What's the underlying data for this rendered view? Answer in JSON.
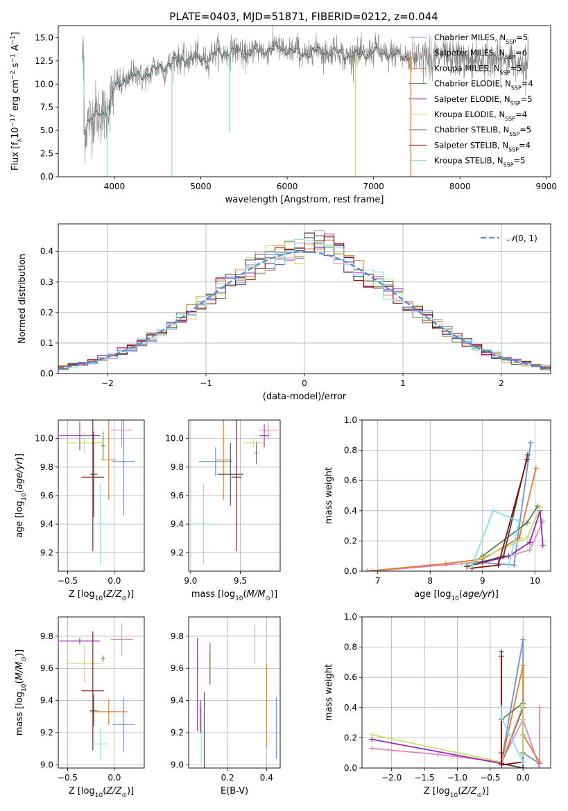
{
  "figure_title": "PLATE=0403, MJD=51871, FIBERID=0212, z=0.044",
  "colors": {
    "Chabrier MILES": "#6a8fdc",
    "Salpeter MILES": "#e987b9",
    "Kroupa MILES": "#e07b2b",
    "Chabrier ELODIE": "#4f7f45",
    "Salpeter ELODIE": "#9c27b0",
    "Kroupa ELODIE": "#c8e16c",
    "Chabrier STELIB": "#444444",
    "Salpeter STELIB": "#8b0a0a",
    "Kroupa STELIB": "#86dfe6",
    "data": "#808080",
    "gaussian": "#5b86d8"
  },
  "chart_data": [
    {
      "type": "line",
      "name": "spectrum",
      "xlabel": "wavelength [Angstrom, rest frame]",
      "ylabel": "Flux [f_λ 10^-17 erg cm^-2 s^-1 A^-1]",
      "xlim": [
        3350,
        9050
      ],
      "ylim": [
        0,
        16.3
      ],
      "xticks": [
        4000,
        5000,
        6000,
        7000,
        8000,
        9000
      ],
      "yticks": [
        0.0,
        2.5,
        5.0,
        7.5,
        10.0,
        12.5,
        15.0
      ],
      "legend_position": "top-right",
      "legend": [
        {
          "label": "Chabrier MILES, N_SSP=5",
          "name": "Chabrier MILES",
          "main": "Chabrier MILES, N",
          "sub": "SSP",
          "tail": "=5"
        },
        {
          "label": "Salpeter MILES, N_SSP=6",
          "name": "Salpeter MILES",
          "main": "Salpeter MILES, N",
          "sub": "SSP",
          "tail": "=6"
        },
        {
          "label": "Kroupa MILES, N_SSP=5",
          "name": "Kroupa MILES",
          "main": "Kroupa MILES, N",
          "sub": "SSP",
          "tail": "=5"
        },
        {
          "label": "Chabrier ELODIE, N_SSP=4",
          "name": "Chabrier ELODIE",
          "main": "Chabrier ELODIE, N",
          "sub": "SSP",
          "tail": "=4"
        },
        {
          "label": "Salpeter ELODIE, N_SSP=5",
          "name": "Salpeter ELODIE",
          "main": "Salpeter ELODIE, N",
          "sub": "SSP",
          "tail": "=5"
        },
        {
          "label": "Kroupa ELODIE, N_SSP=4",
          "name": "Kroupa ELODIE",
          "main": "Kroupa ELODIE, N",
          "sub": "SSP",
          "tail": "=4"
        },
        {
          "label": "Chabrier STELIB, N_SSP=5",
          "name": "Chabrier STELIB",
          "main": "Chabrier STELIB, N",
          "sub": "SSP",
          "tail": "=5"
        },
        {
          "label": "Salpeter STELIB, N_SSP=4",
          "name": "Salpeter STELIB",
          "main": "Salpeter STELIB, N",
          "sub": "SSP",
          "tail": "=4"
        },
        {
          "label": "Kroupa STELIB, N_SSP=5",
          "name": "Kroupa STELIB",
          "main": "Kroupa STELIB, N",
          "sub": "SSP",
          "tail": "=5"
        }
      ],
      "continuum": [
        [
          3650,
          5.0
        ],
        [
          3700,
          6.0
        ],
        [
          3800,
          6.8
        ],
        [
          3900,
          7.3
        ],
        [
          3950,
          8.0
        ],
        [
          4000,
          9.4
        ],
        [
          4100,
          10.2
        ],
        [
          4200,
          10.6
        ],
        [
          4300,
          10.9
        ],
        [
          4400,
          11.4
        ],
        [
          4500,
          11.8
        ],
        [
          4600,
          12.0
        ],
        [
          4700,
          12.2
        ],
        [
          4800,
          12.7
        ],
        [
          4900,
          12.8
        ],
        [
          5000,
          12.9
        ],
        [
          5200,
          13.2
        ],
        [
          5400,
          13.4
        ],
        [
          5600,
          13.6
        ],
        [
          5800,
          13.7
        ],
        [
          6000,
          13.7
        ],
        [
          6200,
          13.5
        ],
        [
          6400,
          13.4
        ],
        [
          6600,
          13.4
        ],
        [
          6800,
          13.2
        ],
        [
          7000,
          13.3
        ],
        [
          7200,
          13.3
        ],
        [
          7430,
          13.1
        ]
      ],
      "data_extent": [
        3630,
        8800
      ],
      "dropouts": [
        [
          4665,
          0
        ],
        [
          5330,
          4.8
        ],
        [
          6790,
          0
        ],
        [
          7430,
          0
        ],
        [
          3920,
          0
        ]
      ]
    },
    {
      "type": "bar",
      "name": "residual-histogram",
      "xlabel": "(data-model)/error",
      "ylabel": "Normed distribution",
      "xlim": [
        -2.5,
        2.5
      ],
      "ylim": [
        0,
        0.49
      ],
      "xticks": [
        -2,
        -1,
        0,
        1,
        2
      ],
      "yticks": [
        0.0,
        0.1,
        0.2,
        0.3,
        0.4
      ],
      "bin_width": 0.1,
      "reference_curve": {
        "label": "N(0,1)",
        "mean": 0,
        "sigma": 1
      },
      "legend_position": "top-right"
    },
    {
      "type": "scatter",
      "name": "age-vs-metallicity",
      "xlabel": "Z [log10(Z/Z_sun)]",
      "ylabel": "age [log10(age/yr)]",
      "xlim": [
        -0.6,
        0.32
      ],
      "ylim": [
        9.07,
        10.13
      ],
      "xticks": [
        -0.5,
        0.0
      ],
      "yticks": [
        9.2,
        9.4,
        9.6,
        9.8,
        10.0
      ],
      "points": [
        {
          "name": "Chabrier MILES",
          "x": 0.1,
          "xerr": 0.12,
          "y": 9.84,
          "yerr": 0.38
        },
        {
          "name": "Salpeter MILES",
          "x": 0.08,
          "xerr": 0.12,
          "y": 10.06,
          "yerr": 0.12
        },
        {
          "name": "Kroupa MILES",
          "x": -0.06,
          "xerr": 0.08,
          "y": 9.85,
          "yerr": 0.28
        },
        {
          "name": "Chabrier ELODIE",
          "x": -0.12,
          "xerr": 0.02,
          "y": 9.95,
          "yerr": 0.1
        },
        {
          "name": "Salpeter ELODIE",
          "x": -0.37,
          "xerr": 0.22,
          "y": 10.02,
          "yerr": 0.1
        },
        {
          "name": "Kroupa ELODIE",
          "x": -0.32,
          "xerr": 0.2,
          "y": 9.97,
          "yerr": 0.08
        },
        {
          "name": "Chabrier STELIB",
          "x": -0.22,
          "xerr": 0.04,
          "y": 9.75,
          "yerr": 0.3
        },
        {
          "name": "Salpeter STELIB",
          "x": -0.23,
          "xerr": 0.12,
          "y": 9.73,
          "yerr": 0.52
        },
        {
          "name": "Kroupa STELIB",
          "x": -0.15,
          "xerr": 0.08,
          "y": 9.4,
          "yerr": 0.28
        }
      ]
    },
    {
      "type": "scatter",
      "name": "age-vs-mass",
      "xlabel": "mass [log10(M/M_sun)]",
      "ylabel": "",
      "xlim": [
        8.98,
        9.9
      ],
      "ylim": [
        9.07,
        10.13
      ],
      "xticks": [
        9.0,
        9.5
      ],
      "yticks": [
        9.2,
        9.4,
        9.6,
        9.8,
        10.0
      ],
      "points": [
        {
          "name": "Chabrier MILES",
          "x": 9.25,
          "xerr": 0.17,
          "y": 9.84,
          "yerr": 0.1
        },
        {
          "name": "Salpeter MILES",
          "x": 9.78,
          "xerr": 0.1,
          "y": 10.06,
          "yerr": 0.06
        },
        {
          "name": "Kroupa MILES",
          "x": 9.33,
          "xerr": 0.08,
          "y": 9.85,
          "yerr": 0.28
        },
        {
          "name": "Chabrier ELODIE",
          "x": 9.66,
          "xerr": 0.02,
          "y": 9.9,
          "yerr": 0.08
        },
        {
          "name": "Salpeter ELODIE",
          "x": 9.74,
          "xerr": 0.05,
          "y": 10.02,
          "yerr": 0.08
        },
        {
          "name": "Kroupa ELODIE",
          "x": 9.63,
          "xerr": 0.1,
          "y": 9.97,
          "yerr": 0.03
        },
        {
          "name": "Chabrier STELIB",
          "x": 9.4,
          "xerr": 0.13,
          "y": 9.75,
          "yerr": 0.22
        },
        {
          "name": "Salpeter STELIB",
          "x": 9.46,
          "xerr": 0.05,
          "y": 9.73,
          "yerr": 0.52
        },
        {
          "name": "Kroupa STELIB",
          "x": 9.13,
          "xerr": 0.1,
          "y": 9.4,
          "yerr": 0.28
        }
      ]
    },
    {
      "type": "line",
      "name": "mass-weight-vs-age",
      "xlabel": "age [log10(age/yr)]",
      "ylabel": "mass weight",
      "xlim": [
        6.7,
        10.3
      ],
      "ylim": [
        0,
        1.0
      ],
      "xticks": [
        7,
        8,
        9,
        10
      ],
      "yticks": [
        0.0,
        0.2,
        0.4,
        0.6,
        0.8,
        1.0
      ],
      "series": [
        {
          "name": "Chabrier MILES",
          "points": [
            [
              8.6,
              0.05
            ],
            [
              8.9,
              0.06
            ],
            [
              9.6,
              0.04
            ],
            [
              9.92,
              0.85
            ]
          ]
        },
        {
          "name": "Salpeter MILES",
          "points": [
            [
              6.9,
              0.0
            ],
            [
              8.6,
              0.05
            ],
            [
              9.3,
              0.08
            ],
            [
              9.9,
              0.14
            ],
            [
              10.15,
              0.33
            ]
          ]
        },
        {
          "name": "Kroupa MILES",
          "points": [
            [
              6.8,
              0.0
            ],
            [
              8.3,
              0.05
            ],
            [
              9.0,
              0.08
            ],
            [
              9.7,
              0.22
            ],
            [
              10.02,
              0.68
            ]
          ]
        },
        {
          "name": "Chabrier ELODIE",
          "points": [
            [
              8.8,
              0.05
            ],
            [
              9.0,
              0.1
            ],
            [
              9.85,
              0.32
            ],
            [
              10.05,
              0.43
            ]
          ]
        },
        {
          "name": "Salpeter ELODIE",
          "points": [
            [
              8.7,
              0.03
            ],
            [
              9.5,
              0.1
            ],
            [
              9.9,
              0.19
            ],
            [
              10.1,
              0.4
            ],
            [
              10.15,
              0.17
            ]
          ]
        },
        {
          "name": "Kroupa ELODIE",
          "points": [
            [
              8.7,
              0.04
            ],
            [
              9.0,
              0.09
            ],
            [
              9.85,
              0.22
            ],
            [
              10.1,
              0.42
            ]
          ]
        },
        {
          "name": "Chabrier STELIB",
          "points": [
            [
              8.7,
              0.03
            ],
            [
              9.0,
              0.06
            ],
            [
              9.4,
              0.1
            ],
            [
              9.86,
              0.77
            ]
          ]
        },
        {
          "name": "Salpeter STELIB",
          "points": [
            [
              8.8,
              0.02
            ],
            [
              9.3,
              0.04
            ],
            [
              9.85,
              0.74
            ]
          ]
        },
        {
          "name": "Kroupa STELIB",
          "points": [
            [
              8.8,
              0.04
            ],
            [
              9.2,
              0.4
            ],
            [
              9.7,
              0.33
            ],
            [
              9.5,
              0.04
            ]
          ]
        }
      ]
    },
    {
      "type": "scatter",
      "name": "mass-vs-metallicity",
      "xlabel": "Z [log10(Z/Z_sun)]",
      "ylabel": "mass [log10(M/M_sun)]",
      "xlim": [
        -0.6,
        0.32
      ],
      "ylim": [
        8.98,
        9.92
      ],
      "xticks": [
        -0.5,
        0.0
      ],
      "yticks": [
        9.0,
        9.2,
        9.4,
        9.6,
        9.8
      ],
      "points": [
        {
          "name": "Chabrier MILES",
          "x": 0.1,
          "xerr": 0.12,
          "y": 9.25,
          "yerr": 0.17
        },
        {
          "name": "Salpeter MILES",
          "x": 0.08,
          "xerr": 0.12,
          "y": 9.78,
          "yerr": 0.1
        },
        {
          "name": "Kroupa MILES",
          "x": -0.06,
          "xerr": 0.2,
          "y": 9.33,
          "yerr": 0.08
        },
        {
          "name": "Chabrier ELODIE",
          "x": -0.12,
          "xerr": 0.02,
          "y": 9.66,
          "yerr": 0.02
        },
        {
          "name": "Salpeter ELODIE",
          "x": -0.37,
          "xerr": 0.22,
          "y": 9.77,
          "yerr": 0.02
        },
        {
          "name": "Kroupa ELODIE",
          "x": -0.32,
          "xerr": 0.2,
          "y": 9.63,
          "yerr": 0.12
        },
        {
          "name": "Chabrier STELIB",
          "x": -0.22,
          "xerr": 0.04,
          "y": 9.34,
          "yerr": 0.1
        },
        {
          "name": "Salpeter STELIB",
          "x": -0.23,
          "xerr": 0.12,
          "y": 9.46,
          "yerr": 0.37
        },
        {
          "name": "Kroupa STELIB",
          "x": -0.15,
          "xerr": 0.08,
          "y": 9.13,
          "yerr": 0.1
        }
      ]
    },
    {
      "type": "scatter",
      "name": "mass-vs-extinction",
      "xlabel": "E(B-V)",
      "ylabel": "",
      "xlim": [
        0.0,
        0.47
      ],
      "ylim": [
        8.98,
        9.92
      ],
      "xticks": [
        0.2,
        0.4
      ],
      "yticks": [
        9.0,
        9.2,
        9.4,
        9.6,
        9.8
      ],
      "points": [
        {
          "name": "Chabrier MILES",
          "x": 0.45,
          "y": 9.23,
          "yerr": 0.19
        },
        {
          "name": "Salpeter MILES",
          "x": 0.34,
          "y": 9.75,
          "yerr": 0.12
        },
        {
          "name": "Kroupa MILES",
          "x": 0.4,
          "y": 9.37,
          "yerr": 0.26
        },
        {
          "name": "Chabrier ELODIE",
          "x": 0.11,
          "y": 9.63,
          "yerr": 0.13
        },
        {
          "name": "Salpeter ELODIE",
          "x": 0.045,
          "y": 9.5,
          "yerr": 0.29
        },
        {
          "name": "Kroupa ELODIE",
          "x": 0.105,
          "y": 9.6,
          "yerr": 0.1
        },
        {
          "name": "Chabrier STELIB",
          "x": 0.08,
          "y": 9.2,
          "yerr": 0.25
        },
        {
          "name": "Salpeter STELIB",
          "x": 0.06,
          "y": 9.3,
          "yerr": 0.1
        },
        {
          "name": "Kroupa STELIB",
          "x": 0.065,
          "y": 9.18,
          "yerr": 0.17
        }
      ]
    },
    {
      "type": "line",
      "name": "mass-weight-vs-metallicity",
      "xlabel": "Z [log10(Z/Z_sun)]",
      "ylabel": "mass weight",
      "xlim": [
        -2.45,
        0.42
      ],
      "ylim": [
        0,
        1.0
      ],
      "xticks": [
        -2.0,
        -1.5,
        -1.0,
        -0.5,
        0.0
      ],
      "yticks": [
        0.0,
        0.2,
        0.4,
        0.6,
        0.8,
        1.0
      ],
      "series": [
        {
          "name": "Chabrier MILES",
          "points": [
            [
              -0.33,
              0.04
            ],
            [
              0.0,
              0.85
            ],
            [
              0.0,
              0.1
            ],
            [
              0.25,
              0.03
            ]
          ]
        },
        {
          "name": "Salpeter MILES",
          "points": [
            [
              -2.3,
              0.13
            ],
            [
              -1.3,
              0.09
            ],
            [
              -0.33,
              0.04
            ],
            [
              0.0,
              0.32
            ],
            [
              0.25,
              0.0
            ],
            [
              0.25,
              0.4
            ]
          ]
        },
        {
          "name": "Kroupa MILES",
          "points": [
            [
              -0.33,
              0.03
            ],
            [
              0.0,
              0.68
            ],
            [
              0.0,
              0.22
            ],
            [
              0.25,
              0.04
            ]
          ]
        },
        {
          "name": "Chabrier ELODIE",
          "points": [
            [
              -0.33,
              0.32
            ],
            [
              0.0,
              0.43
            ],
            [
              0.0,
              0.1
            ]
          ]
        },
        {
          "name": "Salpeter ELODIE",
          "points": [
            [
              -2.3,
              0.19
            ],
            [
              -0.33,
              0.03
            ],
            [
              0.0,
              0.4
            ],
            [
              0.0,
              0.0
            ]
          ]
        },
        {
          "name": "Kroupa ELODIE",
          "points": [
            [
              -2.3,
              0.22
            ],
            [
              -0.33,
              0.04
            ],
            [
              0.0,
              0.42
            ],
            [
              0.0,
              0.09
            ]
          ]
        },
        {
          "name": "Chabrier STELIB",
          "points": [
            [
              -0.33,
              0.77
            ],
            [
              -0.33,
              0.1
            ],
            [
              -0.33,
              0.03
            ],
            [
              0.0,
              0.0
            ]
          ]
        },
        {
          "name": "Salpeter STELIB",
          "points": [
            [
              -0.33,
              0.74
            ],
            [
              -0.33,
              0.02
            ],
            [
              0.0,
              0.04
            ]
          ]
        },
        {
          "name": "Kroupa STELIB",
          "points": [
            [
              -0.33,
              0.4
            ],
            [
              -0.33,
              0.33
            ],
            [
              0.0,
              0.04
            ],
            [
              0.0,
              0.04
            ]
          ]
        }
      ]
    }
  ]
}
